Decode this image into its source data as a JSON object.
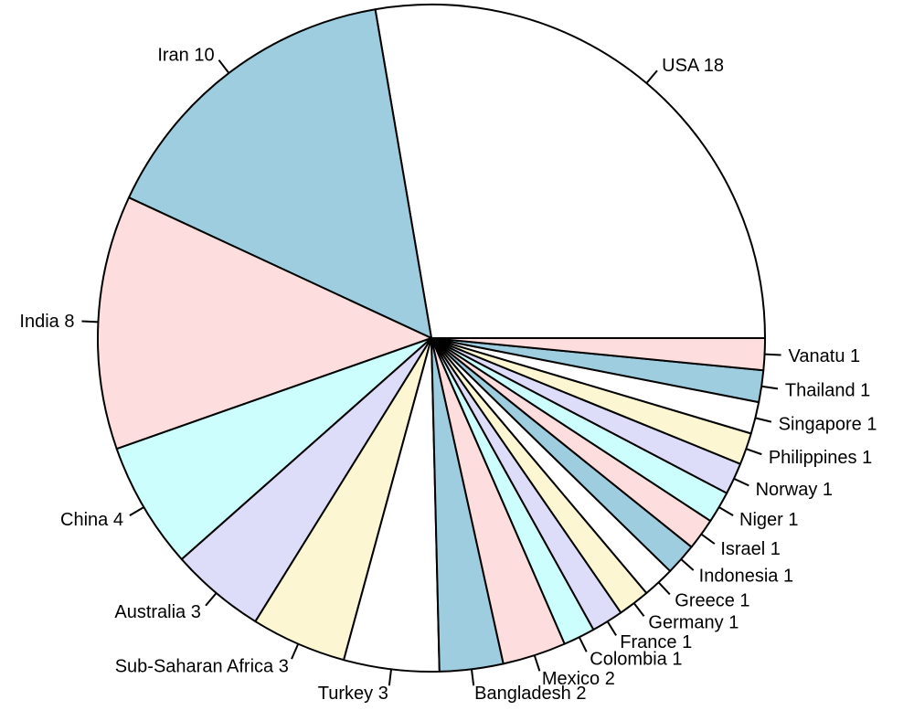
{
  "chart_data": {
    "type": "pie",
    "title": "",
    "start_angle_deg": 0,
    "direction": "counterclockwise",
    "palette": [
      "#ffffff",
      "#9ecde0",
      "#fddddd",
      "#ccfefe",
      "#ddddfa",
      "#fdf6d3"
    ],
    "slices": [
      {
        "label": "USA 18",
        "value": 18
      },
      {
        "label": "Iran  10",
        "value": 10
      },
      {
        "label": "India 8",
        "value": 8
      },
      {
        "label": "China 4",
        "value": 4
      },
      {
        "label": "Australia  3",
        "value": 3
      },
      {
        "label": "Sub-Saharan Africa  3",
        "value": 3
      },
      {
        "label": "Turkey 3",
        "value": 3
      },
      {
        "label": "Bangladesh  2",
        "value": 2
      },
      {
        "label": "Mexico  2",
        "value": 2
      },
      {
        "label": "Colombia  1",
        "value": 1
      },
      {
        "label": "France  1",
        "value": 1
      },
      {
        "label": "Germany  1",
        "value": 1
      },
      {
        "label": "Greece  1",
        "value": 1
      },
      {
        "label": "Indonesia  1",
        "value": 1
      },
      {
        "label": "Israel  1",
        "value": 1
      },
      {
        "label": "Niger  1",
        "value": 1
      },
      {
        "label": "Norway  1",
        "value": 1
      },
      {
        "label": "Philippines  1",
        "value": 1
      },
      {
        "label": "Singapore  1",
        "value": 1
      },
      {
        "label": "Thailand 1",
        "value": 1
      },
      {
        "label": "Vanatu 1",
        "value": 1
      }
    ]
  }
}
